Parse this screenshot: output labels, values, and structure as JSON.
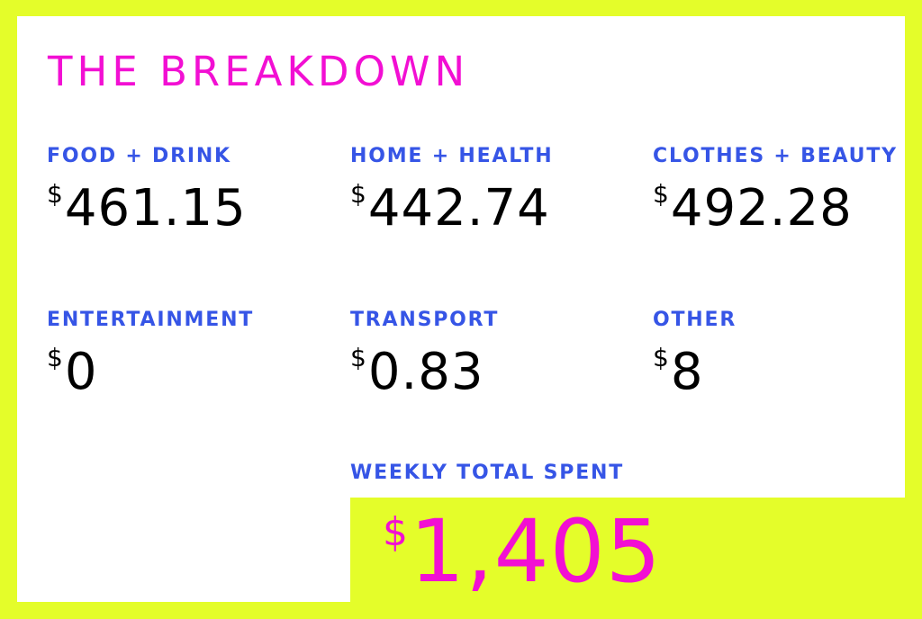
{
  "title": "THE BREAKDOWN",
  "currency_symbol": "$",
  "categories": [
    {
      "label": "FOOD + DRINK",
      "amount": "461.15"
    },
    {
      "label": "HOME + HEALTH",
      "amount": "442.74"
    },
    {
      "label": "CLOTHES + BEAUTY",
      "amount": "492.28"
    },
    {
      "label": "ENTERTAINMENT",
      "amount": "0"
    },
    {
      "label": "TRANSPORT",
      "amount": "0.83"
    },
    {
      "label": "OTHER",
      "amount": "8"
    }
  ],
  "total": {
    "label": "WEEKLY TOTAL SPENT",
    "amount": "1,405"
  },
  "colors": {
    "background": "#e4fd2a",
    "panel": "#ffffff",
    "heading": "#f20fd3",
    "label": "#3655e6",
    "value": "#000000",
    "total": "#f20fd3"
  }
}
